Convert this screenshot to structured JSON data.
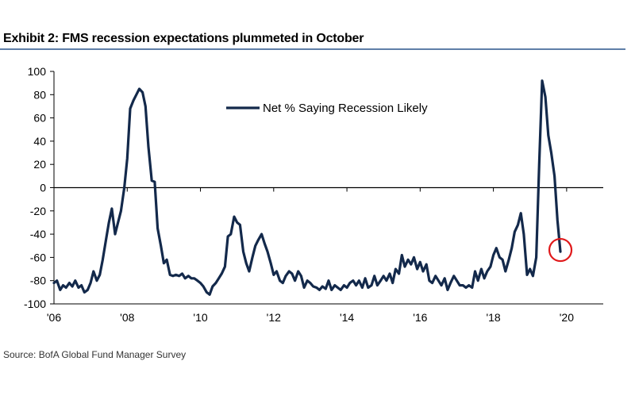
{
  "title": "Exhibit 2: FMS recession expectations plummeted in October",
  "source": "Source: BofA Global Fund Manager Survey",
  "chart_data": {
    "type": "line",
    "title": "Exhibit 2: FMS recession expectations plummeted in October",
    "xlabel": "",
    "ylabel": "",
    "ylim": [
      -100,
      100
    ],
    "xlim": [
      2006,
      2021
    ],
    "yticks": [
      100,
      80,
      60,
      40,
      20,
      0,
      -20,
      -40,
      -60,
      -80,
      -100
    ],
    "xticks": [
      {
        "value": 2006,
        "label": "'06"
      },
      {
        "value": 2008,
        "label": "'08"
      },
      {
        "value": 2010,
        "label": "'10"
      },
      {
        "value": 2012,
        "label": "'12"
      },
      {
        "value": 2014,
        "label": "'14"
      },
      {
        "value": 2016,
        "label": "'16"
      },
      {
        "value": 2018,
        "label": "'18"
      },
      {
        "value": 2020,
        "label": "'20"
      }
    ],
    "grid": false,
    "legend": {
      "position": "top-center"
    },
    "line_color": "#13294b",
    "highlight_color": "#e0191b",
    "series": [
      {
        "name": "Net % Saying Recession Likely",
        "x": [
          2006.0,
          2006.08,
          2006.17,
          2006.25,
          2006.33,
          2006.42,
          2006.5,
          2006.58,
          2006.67,
          2006.75,
          2006.83,
          2006.92,
          2007.0,
          2007.08,
          2007.17,
          2007.25,
          2007.33,
          2007.42,
          2007.5,
          2007.58,
          2007.67,
          2007.75,
          2007.83,
          2007.92,
          2008.0,
          2008.08,
          2008.17,
          2008.25,
          2008.33,
          2008.42,
          2008.5,
          2008.58,
          2008.67,
          2008.75,
          2008.83,
          2008.92,
          2009.0,
          2009.08,
          2009.17,
          2009.25,
          2009.33,
          2009.42,
          2009.5,
          2009.58,
          2009.67,
          2009.75,
          2009.83,
          2009.92,
          2010.0,
          2010.08,
          2010.17,
          2010.25,
          2010.33,
          2010.42,
          2010.5,
          2010.58,
          2010.67,
          2010.75,
          2010.83,
          2010.92,
          2011.0,
          2011.08,
          2011.17,
          2011.25,
          2011.33,
          2011.42,
          2011.5,
          2011.58,
          2011.67,
          2011.75,
          2011.83,
          2011.92,
          2012.0,
          2012.08,
          2012.17,
          2012.25,
          2012.33,
          2012.42,
          2012.5,
          2012.58,
          2012.67,
          2012.75,
          2012.83,
          2012.92,
          2013.0,
          2013.08,
          2013.17,
          2013.25,
          2013.33,
          2013.42,
          2013.5,
          2013.58,
          2013.67,
          2013.75,
          2013.83,
          2013.92,
          2014.0,
          2014.08,
          2014.17,
          2014.25,
          2014.33,
          2014.42,
          2014.5,
          2014.58,
          2014.67,
          2014.75,
          2014.83,
          2014.92,
          2015.0,
          2015.08,
          2015.17,
          2015.25,
          2015.33,
          2015.42,
          2015.5,
          2015.58,
          2015.67,
          2015.75,
          2015.83,
          2015.92,
          2016.0,
          2016.08,
          2016.17,
          2016.25,
          2016.33,
          2016.42,
          2016.5,
          2016.58,
          2016.67,
          2016.75,
          2016.83,
          2016.92,
          2017.0,
          2017.08,
          2017.17,
          2017.25,
          2017.33,
          2017.42,
          2017.5,
          2017.58,
          2017.67,
          2017.75,
          2017.83,
          2017.92,
          2018.0,
          2018.08,
          2018.17,
          2018.25,
          2018.33,
          2018.42,
          2018.5,
          2018.58,
          2018.67,
          2018.75,
          2018.83,
          2018.92,
          2019.0,
          2019.08,
          2019.17,
          2019.25,
          2019.33,
          2019.42,
          2019.5,
          2019.58,
          2019.67,
          2019.75,
          2019.83
        ],
        "values": [
          -82,
          -80,
          -88,
          -84,
          -86,
          -82,
          -85,
          -80,
          -86,
          -84,
          -90,
          -88,
          -82,
          -72,
          -80,
          -75,
          -62,
          -45,
          -30,
          -18,
          -40,
          -30,
          -20,
          0,
          25,
          68,
          75,
          80,
          85,
          82,
          70,
          35,
          6,
          5,
          -35,
          -50,
          -65,
          -62,
          -75,
          -76,
          -75,
          -76,
          -74,
          -78,
          -76,
          -78,
          -78,
          -80,
          -82,
          -85,
          -90,
          -92,
          -85,
          -82,
          -78,
          -74,
          -68,
          -42,
          -40,
          -25,
          -30,
          -32,
          -55,
          -65,
          -72,
          -60,
          -50,
          -45,
          -40,
          -48,
          -55,
          -65,
          -75,
          -72,
          -80,
          -82,
          -76,
          -72,
          -74,
          -80,
          -72,
          -76,
          -86,
          -80,
          -82,
          -85,
          -86,
          -88,
          -85,
          -87,
          -80,
          -88,
          -84,
          -86,
          -88,
          -84,
          -86,
          -82,
          -80,
          -84,
          -80,
          -86,
          -78,
          -86,
          -84,
          -76,
          -84,
          -80,
          -76,
          -80,
          -74,
          -82,
          -70,
          -74,
          -58,
          -68,
          -62,
          -66,
          -60,
          -70,
          -64,
          -72,
          -66,
          -80,
          -82,
          -76,
          -80,
          -84,
          -78,
          -88,
          -82,
          -76,
          -80,
          -84,
          -84,
          -86,
          -84,
          -86,
          -72,
          -80,
          -70,
          -78,
          -72,
          -68,
          -58,
          -52,
          -60,
          -62,
          -72,
          -62,
          -52,
          -38,
          -32,
          -22,
          -40,
          -75,
          -70,
          -76,
          -60,
          20,
          92,
          78,
          45,
          30,
          10,
          -28,
          -55
        ]
      }
    ]
  }
}
